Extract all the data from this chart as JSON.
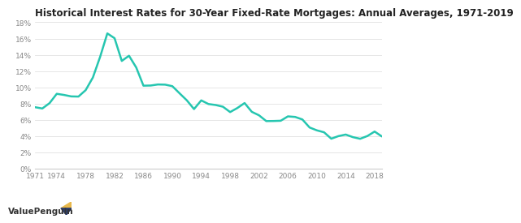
{
  "title": "Historical Interest Rates for 30-Year Fixed-Rate Mortgages: Annual Averages, 1971-2019",
  "line_color": "#26c6b0",
  "background_color": "#ffffff",
  "plot_bg_color": "#ffffff",
  "ylim": [
    0,
    18
  ],
  "ytick_labels": [
    "0%",
    "2%",
    "4%",
    "6%",
    "8%",
    "10%",
    "12%",
    "14%",
    "16%",
    "18%"
  ],
  "ytick_values": [
    0,
    2,
    4,
    6,
    8,
    10,
    12,
    14,
    16,
    18
  ],
  "xticks": [
    1971,
    1974,
    1978,
    1982,
    1986,
    1990,
    1994,
    1998,
    2002,
    2006,
    2010,
    2014,
    2018
  ],
  "data": {
    "years": [
      1971,
      1972,
      1973,
      1974,
      1975,
      1976,
      1977,
      1978,
      1979,
      1980,
      1981,
      1982,
      1983,
      1984,
      1985,
      1986,
      1987,
      1988,
      1989,
      1990,
      1991,
      1992,
      1993,
      1994,
      1995,
      1996,
      1997,
      1998,
      1999,
      2000,
      2001,
      2002,
      2003,
      2004,
      2005,
      2006,
      2007,
      2008,
      2009,
      2010,
      2011,
      2012,
      2013,
      2014,
      2015,
      2016,
      2017,
      2018,
      2019
    ],
    "rates": [
      7.54,
      7.38,
      8.04,
      9.19,
      9.05,
      8.87,
      8.85,
      9.64,
      11.2,
      13.74,
      16.63,
      16.04,
      13.24,
      13.88,
      12.43,
      10.19,
      10.21,
      10.34,
      10.32,
      10.13,
      9.25,
      8.39,
      7.31,
      8.38,
      7.93,
      7.81,
      7.6,
      6.94,
      7.44,
      8.05,
      6.97,
      6.54,
      5.83,
      5.84,
      5.87,
      6.41,
      6.34,
      6.03,
      5.04,
      4.69,
      4.45,
      3.66,
      3.98,
      4.17,
      3.85,
      3.65,
      3.99,
      4.54,
      3.94
    ]
  },
  "watermark": "ValuePenguin",
  "title_fontsize": 8.5,
  "tick_fontsize": 6.5,
  "line_width": 1.8,
  "grid_color": "#e0e0e0",
  "spine_color": "#cccccc",
  "tick_color": "#888888",
  "title_color": "#222222"
}
